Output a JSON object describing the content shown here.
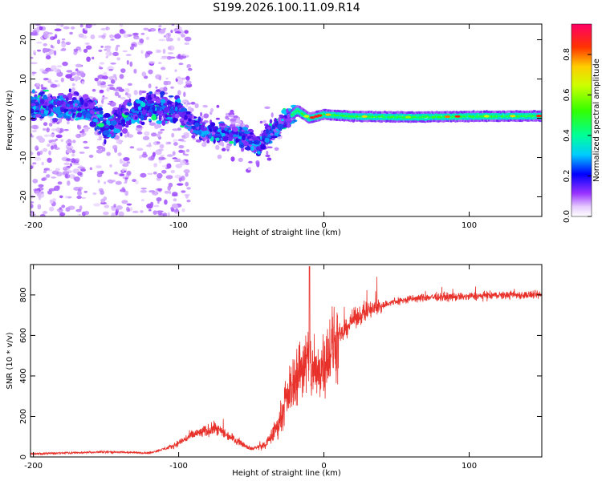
{
  "title": "S199.2026.100.11.09.R14",
  "colors": {
    "snr_line": "#e8312a",
    "frame": "#000000",
    "background": "#ffffff"
  },
  "chart_data": [
    {
      "type": "heatmap",
      "xlabel": "Height of straight line (km)",
      "ylabel": "Frequency (Hz)",
      "xlim": [
        -202,
        150
      ],
      "ylim": [
        -25,
        24
      ],
      "xticks": [
        -200,
        -100,
        0,
        100
      ],
      "xtick_labels": [
        "-200",
        "-100",
        "0",
        "100"
      ],
      "yticks": [
        -20,
        -10,
        0,
        10,
        20
      ],
      "ytick_labels": [
        "-20",
        "-10",
        "0",
        "10",
        "20"
      ],
      "colorbar": {
        "label": "Normalized spectral amplitude",
        "range": [
          0,
          0.95
        ],
        "ticks": [
          0.0,
          0.2,
          0.4,
          0.6,
          0.8
        ],
        "tick_labels": [
          "0.0",
          "0.2",
          "0.4",
          "0.6",
          "0.8"
        ],
        "colormap": "rainbow"
      },
      "ridge": {
        "description_points": [
          {
            "x": -200,
            "y": 3
          },
          {
            "x": -180,
            "y": 3
          },
          {
            "x": -160,
            "y": 2
          },
          {
            "x": -150,
            "y": -3
          },
          {
            "x": -140,
            "y": 0
          },
          {
            "x": -120,
            "y": 3
          },
          {
            "x": -100,
            "y": 2
          },
          {
            "x": -90,
            "y": -2
          },
          {
            "x": -75,
            "y": -4
          },
          {
            "x": -60,
            "y": -4
          },
          {
            "x": -45,
            "y": -7
          },
          {
            "x": -35,
            "y": -3
          },
          {
            "x": -25,
            "y": 0
          },
          {
            "x": -18,
            "y": 2
          },
          {
            "x": -10,
            "y": 0
          },
          {
            "x": 0,
            "y": 1
          },
          {
            "x": 20,
            "y": 0.5
          },
          {
            "x": 60,
            "y": 0.3
          },
          {
            "x": 100,
            "y": 0.5
          },
          {
            "x": 150,
            "y": 0.6
          }
        ]
      }
    },
    {
      "type": "line",
      "xlabel": "Height of straight line (km)",
      "ylabel": "SNR (10 * v/v)",
      "xlim": [
        -202,
        150
      ],
      "ylim": [
        0,
        950
      ],
      "xticks": [
        -200,
        -100,
        0,
        100
      ],
      "xtick_labels": [
        "-200",
        "-100",
        "0",
        "100"
      ],
      "yticks": [
        0,
        200,
        400,
        600,
        800
      ],
      "ytick_labels": [
        "0",
        "200",
        "400",
        "600",
        "800"
      ],
      "series": [
        {
          "envelope_points": [
            {
              "x": -202,
              "y": 15
            },
            {
              "x": -150,
              "y": 25
            },
            {
              "x": -120,
              "y": 20
            },
            {
              "x": -105,
              "y": 50
            },
            {
              "x": -90,
              "y": 110
            },
            {
              "x": -75,
              "y": 140
            },
            {
              "x": -62,
              "y": 90
            },
            {
              "x": -50,
              "y": 40
            },
            {
              "x": -40,
              "y": 60
            },
            {
              "x": -32,
              "y": 150
            },
            {
              "x": -25,
              "y": 300
            },
            {
              "x": -18,
              "y": 420
            },
            {
              "x": -12,
              "y": 480
            },
            {
              "x": -5,
              "y": 400
            },
            {
              "x": 0,
              "y": 480
            },
            {
              "x": 10,
              "y": 580
            },
            {
              "x": 20,
              "y": 680
            },
            {
              "x": 30,
              "y": 720
            },
            {
              "x": 45,
              "y": 760
            },
            {
              "x": 60,
              "y": 780
            },
            {
              "x": 75,
              "y": 790
            },
            {
              "x": 90,
              "y": 790
            },
            {
              "x": 110,
              "y": 795
            },
            {
              "x": 130,
              "y": 800
            },
            {
              "x": 150,
              "y": 800
            }
          ],
          "peak": {
            "x": -10,
            "y": 940
          }
        }
      ]
    }
  ]
}
